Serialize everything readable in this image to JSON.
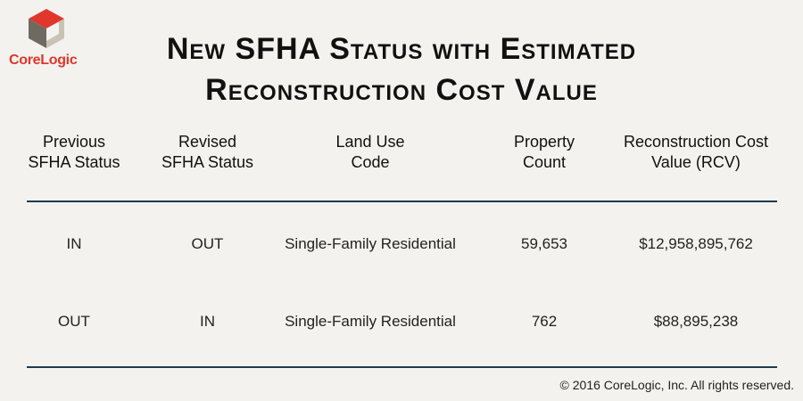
{
  "logo": {
    "text": "CoreLogic",
    "mark_colors": {
      "top": "#e0362b",
      "left": "#6e6a61",
      "right": "#c9c3b4"
    }
  },
  "title": {
    "line1": "New SFHA Status with Estimated",
    "line2": "Reconstruction Cost Value"
  },
  "table": {
    "headers": [
      {
        "line1": "Previous",
        "line2": "SFHA Status"
      },
      {
        "line1": "Revised",
        "line2": "SFHA Status"
      },
      {
        "line1": "Land Use",
        "line2": "Code"
      },
      {
        "line1": "Property",
        "line2": "Count"
      },
      {
        "line1": "Reconstruction Cost",
        "line2": "Value (RCV)"
      }
    ],
    "rows": [
      [
        "IN",
        "OUT",
        "Single-Family Residential",
        "59,653",
        "$12,958,895,762"
      ],
      [
        "OUT",
        "IN",
        "Single-Family Residential",
        "762",
        "$88,895,238"
      ]
    ],
    "rule_color": "#1f3a4d"
  },
  "footer": {
    "copyright": "© 2016 CoreLogic, Inc. All rights reserved."
  }
}
